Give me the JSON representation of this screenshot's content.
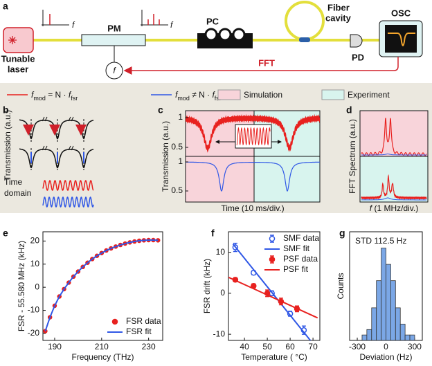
{
  "panel_labels": [
    "a",
    "b",
    "c",
    "d",
    "e",
    "f",
    "g"
  ],
  "setup": {
    "laser": [
      "Tunable",
      "laser"
    ],
    "pm": "PM",
    "pc": "PC",
    "cavity": [
      "Fiber",
      "cavity"
    ],
    "osc": "OSC",
    "pd": "PD",
    "f_symbol": "f",
    "fft": "FFT",
    "axis_f": "f"
  },
  "legend": {
    "match": {
      "sym": "f",
      "sub": "mod",
      "rel": " = N · ",
      "sym2": "f",
      "sub2": "fsr"
    },
    "mismatch": {
      "sym": "f",
      "sub": "mod",
      "rel": " ≠ N · ",
      "sym2": "f",
      "sub2": "fsr"
    },
    "simulation": "Simulation",
    "experiment": "Experiment"
  },
  "panel_b": {
    "ylabel": "Transmission (a.u.)",
    "time_label": [
      "Time",
      "domain"
    ]
  },
  "panel_c": {
    "ylabel": "Transmission (a.u.)",
    "xlabel": "Time (10 ms/div.)",
    "yticks": [
      1,
      0.5
    ]
  },
  "panel_d": {
    "ylabel": "FFT Spectrum (a.u.)",
    "xlabel": {
      "sym": "f",
      "rest": " (1 MHz/div.)"
    }
  },
  "chart_data": [
    {
      "type": "scatter",
      "xlabel": "Frequency (THz)",
      "ylabel": "FSR - 55.580 MHz (kHz)",
      "xlim": [
        185,
        236
      ],
      "ylim": [
        -23,
        24
      ],
      "xticks": [
        190,
        210,
        230
      ],
      "yticks": [
        -20,
        -10,
        0,
        10,
        20
      ],
      "legend_loc": "lower right",
      "series": [
        {
          "name": "FSR data",
          "color": "#e8211f",
          "kind": "points",
          "x": [
            186,
            188,
            190,
            192,
            194,
            196,
            198,
            200,
            202,
            204,
            206,
            208,
            210,
            212,
            214,
            216,
            218,
            220,
            222,
            224,
            226,
            228,
            230,
            232,
            234
          ],
          "values": [
            -19,
            -13,
            -8,
            -4,
            -0.8,
            2,
            4.6,
            6.8,
            8.8,
            10.6,
            12.2,
            13.6,
            14.8,
            15.9,
            16.8,
            17.6,
            18.3,
            18.9,
            19.4,
            19.8,
            20.1,
            20.3,
            20.4,
            20.4,
            20.3
          ]
        },
        {
          "name": "FSR fit",
          "color": "#2f57e6",
          "kind": "line",
          "x": [
            186,
            188,
            190,
            192,
            194,
            196,
            198,
            200,
            202,
            204,
            206,
            208,
            210,
            212,
            214,
            216,
            218,
            220,
            222,
            224,
            226,
            228,
            230,
            232,
            234
          ],
          "values": [
            -19,
            -13,
            -8,
            -4,
            -0.8,
            2,
            4.6,
            6.8,
            8.8,
            10.6,
            12.2,
            13.6,
            14.8,
            15.9,
            16.8,
            17.6,
            18.3,
            18.9,
            19.4,
            19.8,
            20.1,
            20.3,
            20.4,
            20.4,
            20.3
          ]
        }
      ]
    },
    {
      "type": "scatter",
      "xlabel": "Temperature ( °C)",
      "ylabel": "FSR drift (kHz)",
      "xlim": [
        33,
        73
      ],
      "ylim": [
        -11.5,
        15
      ],
      "xticks": [
        40,
        50,
        60,
        70
      ],
      "yticks": [
        -10,
        0,
        10
      ],
      "legend_loc": "upper right",
      "series": [
        {
          "name": "SMF data",
          "color": "#2f57e6",
          "kind": "errorbar",
          "marker": "open",
          "x": [
            36,
            44,
            52,
            60,
            66
          ],
          "values": [
            11.2,
            5,
            0,
            -5,
            -9
          ],
          "errors": [
            1,
            0.5,
            0.6,
            0.6,
            1
          ]
        },
        {
          "name": "SMF fit",
          "color": "#2f57e6",
          "kind": "line",
          "x": [
            35,
            70
          ],
          "values": [
            12,
            -12.3
          ]
        },
        {
          "name": "PSF data",
          "color": "#e8211f",
          "kind": "errorbar",
          "marker": "filled",
          "x": [
            36,
            44,
            50,
            56,
            63
          ],
          "values": [
            3.3,
            1.8,
            0,
            -2,
            -3.8
          ],
          "errors": [
            0.5,
            0.5,
            0.8,
            0.8,
            0.7
          ]
        },
        {
          "name": "PSF fit",
          "color": "#e8211f",
          "kind": "line",
          "x": [
            33,
            72
          ],
          "values": [
            3.9,
            -6
          ]
        }
      ]
    },
    {
      "type": "histogram",
      "annotation": "STD 112.5 Hz",
      "xlabel": "Deviation (Hz)",
      "ylabel": "Counts",
      "xlim": [
        -380,
        380
      ],
      "xticks": [
        -300,
        0,
        300
      ],
      "ylim": [
        0,
        20
      ],
      "color": "#7ba7e6",
      "bins": [
        -250,
        -200,
        -150,
        -100,
        -50,
        0,
        50,
        100,
        150,
        200,
        250,
        300
      ],
      "values": [
        1,
        2,
        6,
        11,
        17,
        14,
        11,
        6,
        3,
        1,
        1
      ]
    }
  ]
}
